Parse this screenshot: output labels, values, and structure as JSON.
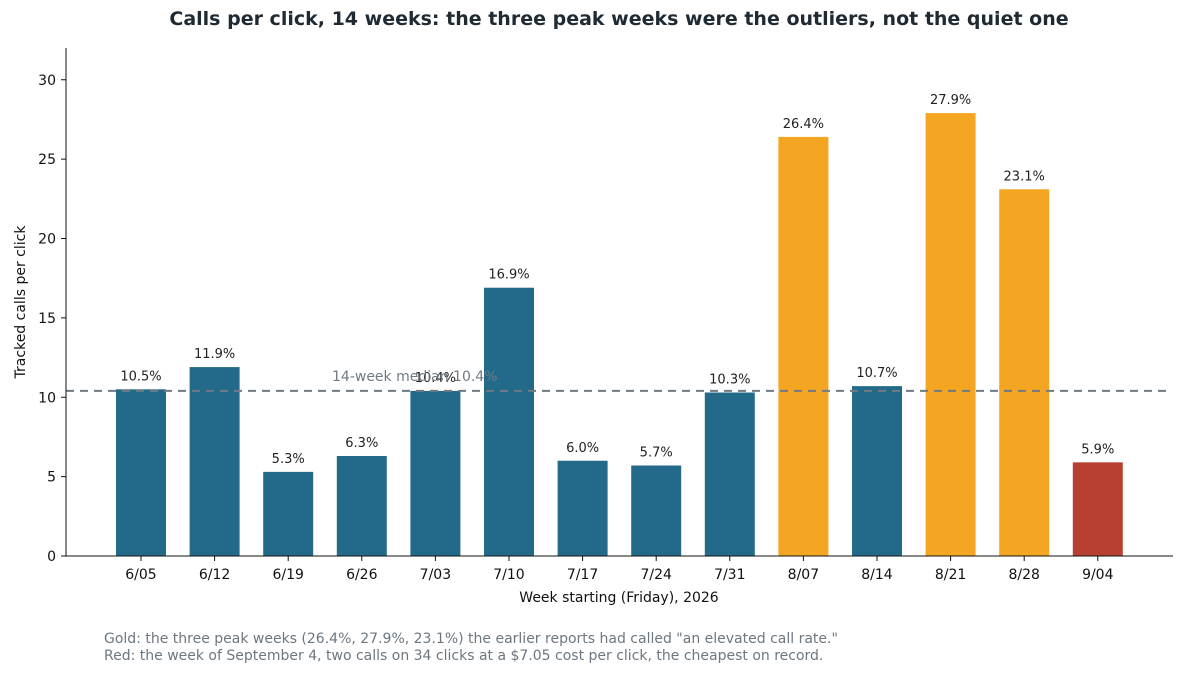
{
  "colors": {
    "normal": "#236a8a",
    "peak": "#f4a623",
    "low": "#b74030",
    "reference": "#6f7a83",
    "axis": "#111111",
    "notes": "#6c7780"
  },
  "chart_data": {
    "type": "bar",
    "title": "Calls per click, 14 weeks: the three peak weeks were the outliers, not the quiet one",
    "xlabel": "Week starting (Friday), 2026",
    "ylabel": "Tracked calls per click",
    "ylim": [
      0,
      32
    ],
    "yticks": [
      0,
      5,
      10,
      15,
      20,
      25,
      30
    ],
    "grid": false,
    "categories": [
      "6/05",
      "6/12",
      "6/19",
      "6/26",
      "7/03",
      "7/10",
      "7/17",
      "7/24",
      "7/31",
      "8/07",
      "8/14",
      "8/21",
      "8/28",
      "9/04"
    ],
    "values": [
      10.5,
      11.9,
      5.3,
      6.3,
      10.4,
      16.9,
      6.0,
      5.7,
      10.3,
      26.4,
      10.7,
      27.9,
      23.1,
      5.9
    ],
    "value_labels": [
      "10.5%",
      "11.9%",
      "5.3%",
      "6.3%",
      "10.4%",
      "16.9%",
      "6.0%",
      "5.7%",
      "10.3%",
      "26.4%",
      "10.7%",
      "27.9%",
      "23.1%",
      "5.9%"
    ],
    "highlight": [
      "normal",
      "normal",
      "normal",
      "normal",
      "normal",
      "normal",
      "normal",
      "normal",
      "normal",
      "peak",
      "normal",
      "peak",
      "peak",
      "low"
    ],
    "reference_line": {
      "value": 10.4,
      "label": "14-week median 10.4%"
    }
  },
  "notes": {
    "gold": "Gold: the three peak weeks (26.4%, 27.9%, 23.1%) the earlier reports had called \"an elevated call rate.\"",
    "red": "Red: the week of September 4, two calls on 34 clicks at a $7.05 cost per click, the cheapest on record."
  }
}
